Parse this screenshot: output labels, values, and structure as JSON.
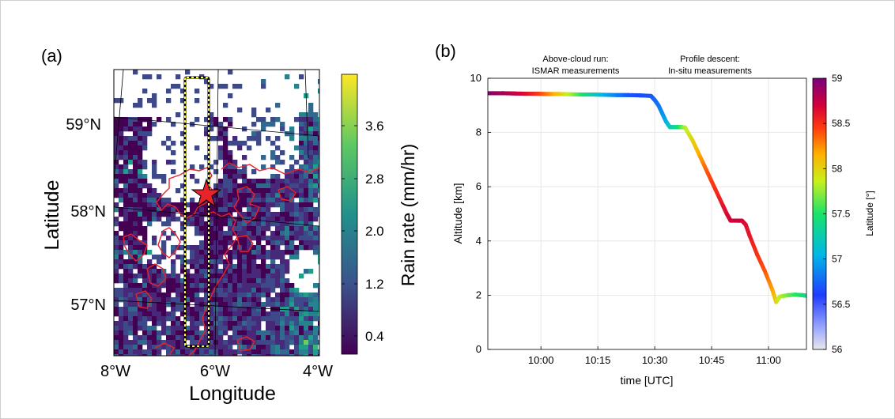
{
  "panel_a": {
    "label": "(a)",
    "xlabel": "Longitude",
    "ylabel": "Latitude",
    "x_ticks": [
      "8°W",
      "6°W",
      "4°W"
    ],
    "y_ticks": [
      "59°N",
      "58°N",
      "57°N"
    ],
    "colorbar_label": "Rain rate (mm/hr)",
    "colorbar_ticks": [
      "3.6",
      "2.8",
      "2.0",
      "1.2",
      "0.4"
    ]
  },
  "panel_b": {
    "label": "(b)",
    "annotation_1": {
      "line1": "Above-cloud run:",
      "line2": "ISMAR measurements"
    },
    "annotation_2": {
      "line1": "Profile descent:",
      "line2": "In-situ measurements"
    },
    "colorbar_label": "Latitude [°]",
    "colorbar_ticks": [
      "59",
      "58.5",
      "58",
      "57.5",
      "57",
      "56.5",
      "56"
    ]
  },
  "chart_data": [
    {
      "type": "heatmap",
      "title": "",
      "xlabel": "Longitude",
      "ylabel": "Latitude",
      "x_tick_labels": [
        "8°W",
        "6°W",
        "4°W"
      ],
      "y_tick_labels": [
        "59°N",
        "58°N",
        "57°N"
      ],
      "xlim": [
        -8,
        -4
      ],
      "ylim": [
        56.6,
        59.5
      ],
      "colorbar": {
        "label": "Rain rate (mm/hr)",
        "ticks": [
          3.6,
          2.8,
          2.0,
          1.2,
          0.4
        ],
        "colormap": "viridis",
        "range": [
          0,
          4.0
        ]
      },
      "marker": {
        "shape": "star",
        "color": "#e8242a",
        "lon": -6.0,
        "lat": 58.1
      },
      "flight_box": {
        "lon_range": [
          -6.5,
          -6.2
        ],
        "lat_range": [
          56.65,
          59.45
        ],
        "color": "#ffff33"
      }
    },
    {
      "type": "scatter",
      "title": "",
      "xlabel": "time [UTC]",
      "ylabel": "Altitude [km]",
      "x_ticks": [
        "10:00",
        "10:15",
        "10:30",
        "10:45",
        "11:00"
      ],
      "y_ticks": [
        0,
        2,
        4,
        6,
        8,
        10
      ],
      "ylim": [
        0,
        10
      ],
      "xlim": [
        "09:46",
        "11:10"
      ],
      "grid": true,
      "colorbar": {
        "label": "Latitude [°]",
        "ticks": [
          59,
          58.5,
          58,
          57.5,
          57,
          56.5,
          56
        ],
        "range": [
          56,
          59
        ]
      },
      "series": [
        {
          "x": [
            "09:46",
            "09:50",
            "09:53",
            "09:56",
            "09:59",
            "10:02",
            "10:05",
            "10:08",
            "10:11",
            "10:14",
            "10:17",
            "10:20",
            "10:23",
            "10:26",
            "10:29",
            "10:30",
            "10:31",
            "10:32",
            "10:33",
            "10:34",
            "10:36",
            "10:37",
            "10:38",
            "10:40",
            "10:42",
            "10:44",
            "10:46",
            "10:48",
            "10:49",
            "10:50",
            "10:52",
            "10:53",
            "10:54",
            "10:55",
            "10:57",
            "10:59",
            "11:01",
            "11:02",
            "11:03",
            "11:05",
            "11:07",
            "11:09",
            "11:10"
          ],
          "y": [
            9.45,
            9.45,
            9.44,
            9.43,
            9.43,
            9.42,
            9.42,
            9.41,
            9.4,
            9.4,
            9.39,
            9.38,
            9.38,
            9.37,
            9.35,
            9.2,
            9.0,
            8.7,
            8.4,
            8.2,
            8.2,
            8.2,
            8.18,
            7.7,
            7.1,
            6.5,
            5.9,
            5.3,
            5.0,
            4.75,
            4.75,
            4.75,
            4.6,
            4.2,
            3.5,
            2.9,
            2.2,
            1.75,
            1.95,
            2.0,
            2.02,
            2.0,
            1.98
          ],
          "latitude": [
            58.95,
            58.85,
            58.75,
            58.65,
            58.5,
            58.3,
            58.05,
            57.8,
            57.5,
            57.25,
            57.0,
            56.85,
            56.7,
            56.65,
            56.7,
            56.75,
            56.8,
            56.9,
            57.0,
            57.2,
            57.4,
            57.6,
            57.8,
            58.0,
            58.2,
            58.4,
            58.5,
            58.6,
            58.65,
            58.7,
            58.7,
            58.7,
            58.65,
            58.6,
            58.5,
            58.4,
            58.2,
            58.0,
            57.85,
            57.7,
            57.55,
            57.45,
            57.4
          ]
        }
      ]
    }
  ]
}
